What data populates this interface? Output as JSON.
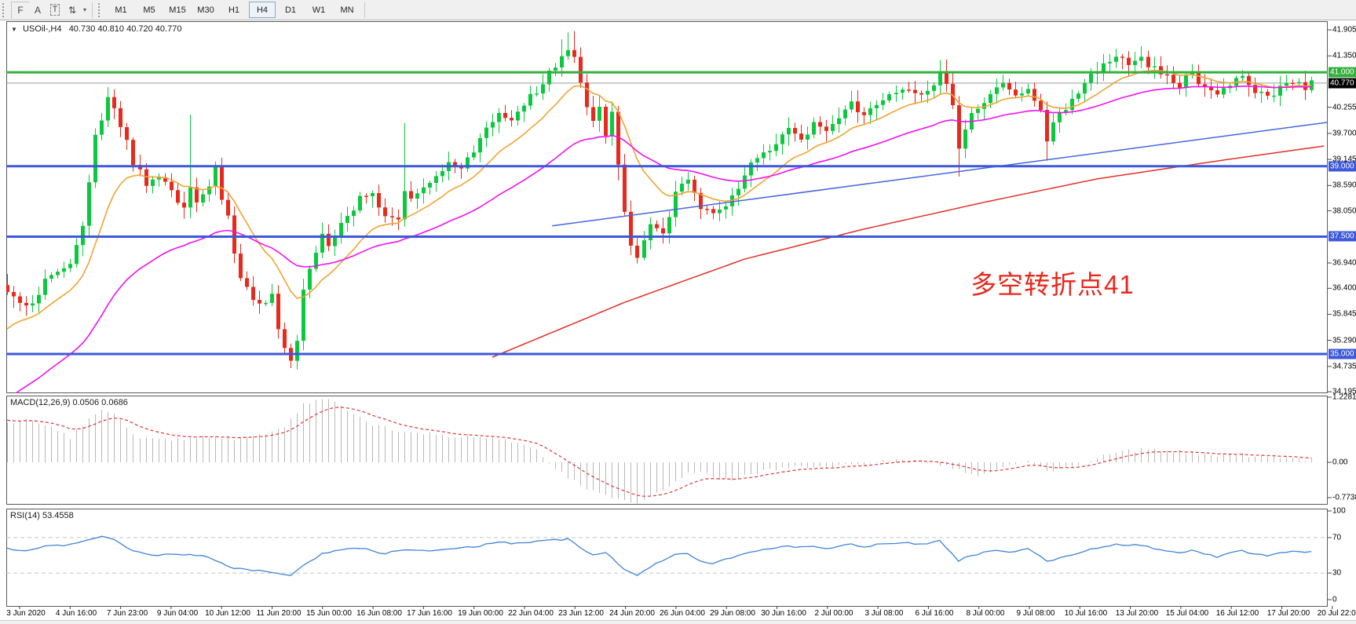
{
  "toolbar": {
    "icons": [
      {
        "name": "grid-f-icon",
        "glyph": "F"
      },
      {
        "name": "annotation-a-icon",
        "glyph": "A"
      },
      {
        "name": "text-tool-icon",
        "glyph": "T"
      },
      {
        "name": "swap-arrows-icon",
        "glyph": "⇅"
      },
      {
        "name": "dropdown-caret-icon",
        "glyph": "▾"
      }
    ],
    "timeframes": [
      "M1",
      "M5",
      "M15",
      "M30",
      "H1",
      "H4",
      "D1",
      "W1",
      "MN"
    ],
    "active_timeframe": "H4"
  },
  "chart_header": {
    "collapse_glyph": "▼",
    "symbol": "USOil-,H4",
    "ohlc_text": "40.730 40.810 40.720 40.770"
  },
  "annotation": {
    "text": "多空转折点41",
    "color": "#e8281d"
  },
  "colors": {
    "bull": "#0cc83e",
    "bear": "#e8291d",
    "ma_fast_orange": "#efa431",
    "ma_mid_magenta": "#f012f0",
    "ma_slow_red": "#e03028",
    "trendline_blue": "#4466dd",
    "level_blue": "#3d58d8",
    "level_green": "#33af3c",
    "current_price_line": "#9a9a9a",
    "current_price_badge": "#000000",
    "macd_hist": "#b8b8b8",
    "macd_signal": "#e03434",
    "rsi_line": "#3d84d8",
    "rsi_levels": "#c4c4c4"
  },
  "chart_data": {
    "type": "candlestick",
    "symbol": "USOil-",
    "timeframe": "H4",
    "quote": {
      "open": "40.730",
      "high": "40.810",
      "low": "40.720",
      "close": "40.770"
    },
    "x_labels": [
      "3 Jun 2020",
      "4 Jun 16:00",
      "7 Jun 23:00",
      "9 Jun 04:00",
      "10 Jun 12:00",
      "11 Jun 20:00",
      "15 Jun 00:00",
      "16 Jun 08:00",
      "17 Jun 16:00",
      "19 Jun 00:00",
      "22 Jun 04:00",
      "23 Jun 12:00",
      "24 Jun 20:00",
      "26 Jun 04:00",
      "29 Jun 08:00",
      "30 Jun 16:00",
      "2 Jul 00:00",
      "3 Jul 08:00",
      "6 Jul 16:00",
      "8 Jul 00:00",
      "9 Jul 08:00",
      "10 Jul 16:00",
      "13 Jul 20:00",
      "15 Jul 04:00",
      "16 Jul 12:00",
      "17 Jul 20:00",
      "20 Jul 22:00"
    ],
    "y_axis_ticks": [
      "41.905",
      "41.350",
      "40.255",
      "39.700",
      "39.145",
      "38.590",
      "38.050",
      "36.940",
      "36.400",
      "35.845",
      "35.290",
      "34.735",
      "34.195"
    ],
    "price_badges": [
      {
        "text": "41.000",
        "value": 41.0,
        "bg": "#33af3c"
      },
      {
        "text": "40.770",
        "value": 40.77,
        "bg": "#000000"
      },
      {
        "text": "39.000",
        "value": 39.0,
        "bg": "#3d58d8"
      },
      {
        "text": "37.500",
        "value": 37.5,
        "bg": "#3d58d8"
      },
      {
        "text": "35.000",
        "value": 35.0,
        "bg": "#3d58d8"
      }
    ],
    "horizontal_levels": [
      {
        "value": 41.0,
        "color": "#33af3c",
        "width": 3
      },
      {
        "value": 39.0,
        "color": "#3d58d8",
        "width": 3
      },
      {
        "value": 37.5,
        "color": "#3d58d8",
        "width": 3
      },
      {
        "value": 35.0,
        "color": "#3d58d8",
        "width": 3
      }
    ],
    "current_price": 40.77,
    "ylim": [
      34.195,
      41.905
    ],
    "bars_total": 208,
    "close_waypoints": [
      [
        0,
        36.4
      ],
      [
        2,
        36.15
      ],
      [
        4,
        36.0
      ],
      [
        6,
        36.55
      ],
      [
        8,
        36.75
      ],
      [
        10,
        36.9
      ],
      [
        12,
        37.8
      ],
      [
        14,
        39.6
      ],
      [
        16,
        40.45
      ],
      [
        18,
        39.9
      ],
      [
        20,
        39.1
      ],
      [
        22,
        38.65
      ],
      [
        24,
        38.8
      ],
      [
        26,
        38.5
      ],
      [
        28,
        38.05
      ],
      [
        29,
        38.55
      ],
      [
        30,
        38.3
      ],
      [
        32,
        38.55
      ],
      [
        33,
        38.95
      ],
      [
        34,
        38.3
      ],
      [
        35,
        37.95
      ],
      [
        36,
        37.1
      ],
      [
        37,
        36.55
      ],
      [
        38,
        36.35
      ],
      [
        40,
        36.05
      ],
      [
        42,
        36.25
      ],
      [
        43,
        35.45
      ],
      [
        44,
        35.05
      ],
      [
        45,
        34.9
      ],
      [
        46,
        35.35
      ],
      [
        47,
        36.3
      ],
      [
        48,
        36.85
      ],
      [
        49,
        37.2
      ],
      [
        50,
        37.5
      ],
      [
        51,
        37.3
      ],
      [
        52,
        37.6
      ],
      [
        54,
        37.9
      ],
      [
        56,
        38.3
      ],
      [
        58,
        38.35
      ],
      [
        60,
        37.95
      ],
      [
        62,
        37.9
      ],
      [
        63,
        38.45
      ],
      [
        64,
        38.3
      ],
      [
        66,
        38.55
      ],
      [
        68,
        38.85
      ],
      [
        70,
        39.1
      ],
      [
        72,
        39.0
      ],
      [
        74,
        39.3
      ],
      [
        76,
        39.85
      ],
      [
        78,
        40.1
      ],
      [
        80,
        40.0
      ],
      [
        82,
        40.35
      ],
      [
        84,
        40.6
      ],
      [
        86,
        41.0
      ],
      [
        88,
        41.3
      ],
      [
        89,
        41.55
      ],
      [
        90,
        41.3
      ],
      [
        91,
        40.85
      ],
      [
        92,
        40.25
      ],
      [
        93,
        39.9
      ],
      [
        94,
        40.3
      ],
      [
        95,
        39.6
      ],
      [
        96,
        40.2
      ],
      [
        97,
        39.1
      ],
      [
        98,
        38.0
      ],
      [
        99,
        37.3
      ],
      [
        100,
        37.0
      ],
      [
        101,
        37.45
      ],
      [
        102,
        37.7
      ],
      [
        104,
        37.5
      ],
      [
        106,
        38.45
      ],
      [
        108,
        38.7
      ],
      [
        110,
        38.15
      ],
      [
        112,
        37.95
      ],
      [
        114,
        38.2
      ],
      [
        116,
        38.6
      ],
      [
        118,
        39.0
      ],
      [
        120,
        39.3
      ],
      [
        122,
        39.5
      ],
      [
        124,
        39.8
      ],
      [
        126,
        39.6
      ],
      [
        128,
        39.9
      ],
      [
        130,
        39.8
      ],
      [
        132,
        40.05
      ],
      [
        134,
        40.3
      ],
      [
        136,
        40.1
      ],
      [
        138,
        40.35
      ],
      [
        140,
        40.5
      ],
      [
        142,
        40.7
      ],
      [
        144,
        40.55
      ],
      [
        146,
        40.6
      ],
      [
        148,
        40.95
      ],
      [
        149,
        40.75
      ],
      [
        150,
        40.25
      ],
      [
        151,
        39.4
      ],
      [
        152,
        39.85
      ],
      [
        153,
        40.15
      ],
      [
        154,
        40.3
      ],
      [
        156,
        40.55
      ],
      [
        158,
        40.7
      ],
      [
        160,
        40.55
      ],
      [
        162,
        40.6
      ],
      [
        164,
        40.15
      ],
      [
        165,
        39.55
      ],
      [
        166,
        39.9
      ],
      [
        168,
        40.25
      ],
      [
        170,
        40.6
      ],
      [
        172,
        40.95
      ],
      [
        174,
        41.15
      ],
      [
        176,
        41.3
      ],
      [
        178,
        41.2
      ],
      [
        180,
        41.3
      ],
      [
        182,
        41.05
      ],
      [
        184,
        40.9
      ],
      [
        186,
        40.75
      ],
      [
        188,
        41.0
      ],
      [
        190,
        40.65
      ],
      [
        192,
        40.5
      ],
      [
        194,
        40.75
      ],
      [
        196,
        40.9
      ],
      [
        198,
        40.55
      ],
      [
        200,
        40.5
      ],
      [
        202,
        40.65
      ],
      [
        204,
        40.78
      ],
      [
        206,
        40.7
      ],
      [
        207,
        40.77
      ]
    ],
    "wick_specials": [
      [
        29,
        "h",
        40.1
      ],
      [
        45,
        "l",
        34.7
      ],
      [
        63,
        "h",
        39.92
      ],
      [
        88,
        "h",
        41.7
      ],
      [
        89,
        "h",
        41.85
      ],
      [
        90,
        "h",
        41.88
      ],
      [
        97,
        "l",
        38.7
      ],
      [
        151,
        "l",
        38.78
      ],
      [
        165,
        "l",
        39.12
      ],
      [
        176,
        "h",
        41.5
      ]
    ],
    "moving_averages": [
      {
        "name": "fast",
        "color": "#efa431",
        "period": 13,
        "seed": 35.4
      },
      {
        "name": "mid",
        "color": "#f012f0",
        "period": 40,
        "seed": 33.9
      }
    ],
    "slow_ma_waypoints": [
      [
        77,
        34.93
      ],
      [
        98,
        36.1
      ],
      [
        117,
        37.02
      ],
      [
        136,
        37.66
      ],
      [
        155,
        38.23
      ],
      [
        173,
        38.73
      ],
      [
        192,
        39.11
      ],
      [
        210,
        39.45
      ]
    ],
    "trendline": {
      "from_bar": 86.5,
      "from_price": 37.73,
      "to_bar": 211,
      "to_price": 39.96
    },
    "indicators": {
      "macd": {
        "label": "MACD(12,26,9) 0.0506 0.0686",
        "params": [
          12,
          26,
          9
        ],
        "value_main": 0.0506,
        "value_signal": 0.0686,
        "axis_ticks": [
          "1.2281",
          "0.00",
          "-0.7738"
        ],
        "max": 1.2281,
        "min": -0.7738,
        "hist_waypoints": [
          [
            0,
            0.75
          ],
          [
            4,
            0.8
          ],
          [
            8,
            0.62
          ],
          [
            10,
            0.45
          ],
          [
            13,
            0.85
          ],
          [
            15,
            1.0
          ],
          [
            17,
            0.95
          ],
          [
            20,
            0.5
          ],
          [
            24,
            0.42
          ],
          [
            28,
            0.45
          ],
          [
            32,
            0.5
          ],
          [
            36,
            0.45
          ],
          [
            40,
            0.5
          ],
          [
            44,
            0.65
          ],
          [
            47,
            1.1
          ],
          [
            50,
            1.22
          ],
          [
            52,
            1.15
          ],
          [
            54,
            0.95
          ],
          [
            58,
            0.7
          ],
          [
            62,
            0.6
          ],
          [
            66,
            0.55
          ],
          [
            70,
            0.5
          ],
          [
            74,
            0.48
          ],
          [
            78,
            0.45
          ],
          [
            80,
            0.4
          ],
          [
            83,
            0.3
          ],
          [
            85,
            0.12
          ],
          [
            87,
            -0.1
          ],
          [
            89,
            -0.3
          ],
          [
            92,
            -0.5
          ],
          [
            95,
            -0.62
          ],
          [
            98,
            -0.72
          ],
          [
            100,
            -0.77
          ],
          [
            102,
            -0.65
          ],
          [
            104,
            -0.5
          ],
          [
            106,
            -0.35
          ],
          [
            108,
            -0.2
          ],
          [
            110,
            -0.18
          ],
          [
            112,
            -0.28
          ],
          [
            114,
            -0.33
          ],
          [
            116,
            -0.3
          ],
          [
            118,
            -0.22
          ],
          [
            122,
            -0.12
          ],
          [
            126,
            -0.06
          ],
          [
            130,
            -0.1
          ],
          [
            134,
            -0.04
          ],
          [
            138,
            0.0
          ],
          [
            142,
            0.05
          ],
          [
            146,
            0.02
          ],
          [
            150,
            -0.12
          ],
          [
            153,
            -0.25
          ],
          [
            156,
            -0.18
          ],
          [
            158,
            -0.08
          ],
          [
            162,
            0.02
          ],
          [
            165,
            -0.15
          ],
          [
            168,
            -0.12
          ],
          [
            172,
            0.05
          ],
          [
            176,
            0.18
          ],
          [
            180,
            0.25
          ],
          [
            184,
            0.22
          ],
          [
            188,
            0.18
          ],
          [
            192,
            0.12
          ],
          [
            196,
            0.14
          ],
          [
            200,
            0.1
          ],
          [
            204,
            0.07
          ],
          [
            207,
            0.05
          ]
        ]
      },
      "rsi": {
        "label": "RSI(14) 53.4558",
        "period": 14,
        "value": 53.4558,
        "axis_ticks": [
          "100",
          "70",
          "30",
          "0"
        ],
        "levels": [
          70,
          30
        ],
        "waypoints": [
          [
            0,
            58
          ],
          [
            3,
            55
          ],
          [
            6,
            60
          ],
          [
            10,
            62
          ],
          [
            14,
            70
          ],
          [
            15,
            72
          ],
          [
            17,
            68
          ],
          [
            20,
            55
          ],
          [
            24,
            50
          ],
          [
            27,
            52
          ],
          [
            30,
            50
          ],
          [
            32,
            48
          ],
          [
            36,
            35
          ],
          [
            40,
            33
          ],
          [
            43,
            29
          ],
          [
            45,
            27
          ],
          [
            47,
            38
          ],
          [
            50,
            52
          ],
          [
            52,
            55
          ],
          [
            56,
            58
          ],
          [
            60,
            52
          ],
          [
            63,
            57
          ],
          [
            66,
            55
          ],
          [
            70,
            58
          ],
          [
            74,
            60
          ],
          [
            78,
            64
          ],
          [
            82,
            64
          ],
          [
            86,
            67
          ],
          [
            89,
            68
          ],
          [
            91,
            58
          ],
          [
            93,
            50
          ],
          [
            95,
            53
          ],
          [
            97,
            40
          ],
          [
            99,
            30
          ],
          [
            100,
            27
          ],
          [
            101,
            32
          ],
          [
            103,
            42
          ],
          [
            106,
            50
          ],
          [
            108,
            52
          ],
          [
            110,
            44
          ],
          [
            112,
            41
          ],
          [
            114,
            45
          ],
          [
            117,
            52
          ],
          [
            120,
            56
          ],
          [
            124,
            60
          ],
          [
            128,
            60
          ],
          [
            130,
            58
          ],
          [
            132,
            60
          ],
          [
            134,
            63
          ],
          [
            136,
            60
          ],
          [
            138,
            62
          ],
          [
            140,
            63
          ],
          [
            142,
            65
          ],
          [
            144,
            62
          ],
          [
            146,
            62
          ],
          [
            148,
            66
          ],
          [
            150,
            52
          ],
          [
            151,
            44
          ],
          [
            153,
            50
          ],
          [
            155,
            53
          ],
          [
            157,
            56
          ],
          [
            159,
            54
          ],
          [
            162,
            57
          ],
          [
            164,
            48
          ],
          [
            165,
            43
          ],
          [
            167,
            46
          ],
          [
            169,
            50
          ],
          [
            171,
            55
          ],
          [
            174,
            60
          ],
          [
            176,
            63
          ],
          [
            178,
            61
          ],
          [
            180,
            62
          ],
          [
            182,
            58
          ],
          [
            184,
            55
          ],
          [
            186,
            53
          ],
          [
            188,
            56
          ],
          [
            190,
            52
          ],
          [
            192,
            48
          ],
          [
            194,
            52
          ],
          [
            196,
            55
          ],
          [
            198,
            52
          ],
          [
            200,
            50
          ],
          [
            202,
            52
          ],
          [
            204,
            54
          ],
          [
            206,
            53
          ],
          [
            207,
            53.46
          ]
        ]
      }
    }
  }
}
